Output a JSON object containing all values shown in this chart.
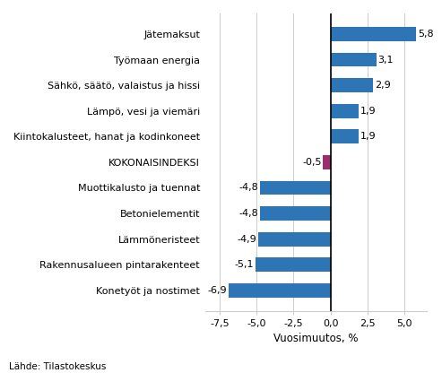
{
  "categories": [
    "Konetyöt ja nostimet",
    "Rakennusalueen pintarakenteet",
    "Lämmöneristeet",
    "Betonielementit",
    "Muottikalusto ja tuennat",
    "KOKONAISINDEKSI",
    "Kiintokalusteet, hanat ja kodinkoneet",
    "Lämpö, vesi ja viemäri",
    "Sähkö, säätö, valaistus ja hissi",
    "Työmaan energia",
    "Jätemaksut"
  ],
  "values": [
    -6.9,
    -5.1,
    -4.9,
    -4.8,
    -4.8,
    -0.5,
    1.9,
    1.9,
    2.9,
    3.1,
    5.8
  ],
  "xlabel": "Vuosimuutos, %",
  "xlim": [
    -8.5,
    6.5
  ],
  "xticks": [
    -7.5,
    -5.0,
    -2.5,
    0.0,
    2.5,
    5.0
  ],
  "xtick_labels": [
    "-7,5",
    "-5,0",
    "-2,5",
    "0,0",
    "2,5",
    "5,0"
  ],
  "value_labels": [
    "-6,9",
    "-5,1",
    "-4,9",
    "-4,8",
    "-4,8",
    "-0,5",
    "1,9",
    "1,9",
    "2,9",
    "3,1",
    "5,8"
  ],
  "source_text": "Lähde: Tilastokeskus",
  "bar_height": 0.55,
  "bar_color": "#2E75B6",
  "kokonaisindeksi_color": "#9B2D6F",
  "background_color": "#ffffff",
  "grid_color": "#cccccc",
  "label_fontsize": 8,
  "value_fontsize": 8,
  "xlabel_fontsize": 8.5
}
